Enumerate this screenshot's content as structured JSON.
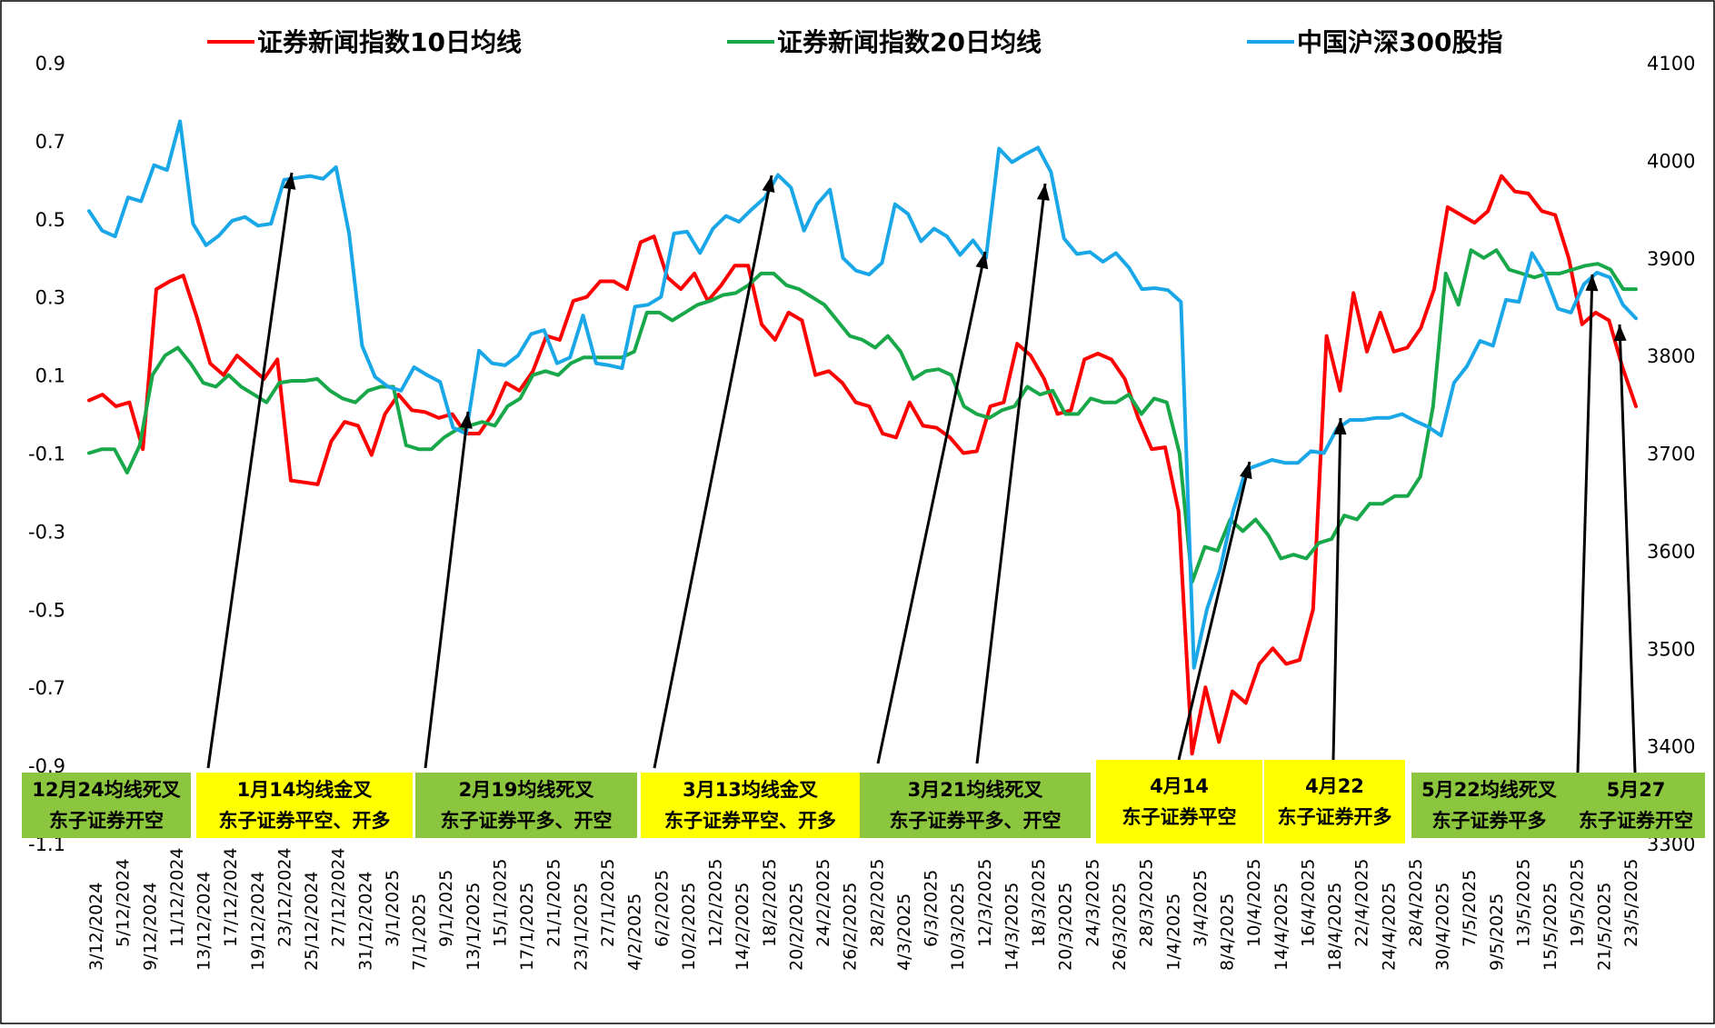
{
  "chart_data": {
    "type": "line",
    "title": "",
    "x_dates_printed": [
      "3/12/2024",
      "5/12/2024",
      "9/12/2024",
      "11/12/2024",
      "13/12/2024",
      "17/12/2024",
      "19/12/2024",
      "23/12/2024",
      "25/12/2024",
      "27/12/2024",
      "31/12/2024",
      "3/1/2025",
      "7/1/2025",
      "9/1/2025",
      "13/1/2025",
      "15/1/2025",
      "17/1/2025",
      "21/1/2025",
      "23/1/2025",
      "27/1/2025",
      "4/2/2025",
      "6/2/2025",
      "10/2/2025",
      "12/2/2025",
      "14/2/2025",
      "18/2/2025",
      "20/2/2025",
      "24/2/2025",
      "26/2/2025",
      "28/2/2025",
      "4/3/2025",
      "6/3/2025",
      "10/3/2025",
      "12/3/2025",
      "14/3/2025",
      "18/3/2025",
      "20/3/2025",
      "24/3/2025",
      "26/3/2025",
      "28/3/2025",
      "1/4/2025",
      "3/4/2025",
      "8/4/2025",
      "10/4/2025",
      "14/4/2025",
      "16/4/2025",
      "18/4/2025",
      "22/4/2025",
      "24/4/2025",
      "28/4/2025",
      "30/4/2025",
      "7/5/2025",
      "9/5/2025",
      "13/5/2025",
      "15/5/2025",
      "19/5/2025",
      "21/5/2025",
      "23/5/2025"
    ],
    "y_left": {
      "ylim": [
        -1.1,
        0.9
      ],
      "ticks": [
        "0.9",
        "0.7",
        "0.5",
        "0.3",
        "0.1",
        "-0.1",
        "-0.3",
        "-0.5",
        "-0.7",
        "-0.9",
        "-1.1"
      ]
    },
    "y_right": {
      "ylim": [
        3300,
        4100
      ],
      "ticks": [
        "4100",
        "4000",
        "3900",
        "3800",
        "3700",
        "3600",
        "3500",
        "3400",
        "3300"
      ]
    },
    "legend_position": "top",
    "series": [
      {
        "name": "证券新闻指数10日均线",
        "axis": "left",
        "color": "#FF0000",
        "values": [
          0.035,
          0.05,
          0.02,
          0.03,
          -0.09,
          0.32,
          0.34,
          0.355,
          0.25,
          0.13,
          0.1,
          0.15,
          0.12,
          0.09,
          0.14,
          -0.17,
          -0.175,
          -0.18,
          -0.07,
          -0.02,
          -0.03,
          -0.105,
          0.0,
          0.05,
          0.01,
          0.005,
          -0.01,
          0.0,
          -0.05,
          -0.05,
          0.0,
          0.08,
          0.06,
          0.11,
          0.2,
          0.19,
          0.29,
          0.3,
          0.34,
          0.34,
          0.32,
          0.44,
          0.455,
          0.35,
          0.32,
          0.36,
          0.29,
          0.33,
          0.38,
          0.38,
          0.23,
          0.19,
          0.26,
          0.24,
          0.1,
          0.11,
          0.08,
          0.03,
          0.02,
          -0.05,
          -0.06,
          0.03,
          -0.03,
          -0.035,
          -0.06,
          -0.1,
          -0.095,
          0.02,
          0.03,
          0.18,
          0.15,
          0.09,
          0.0,
          0.01,
          0.14,
          0.155,
          0.14,
          0.09,
          -0.01,
          -0.09,
          -0.085,
          -0.25,
          -0.87,
          -0.7,
          -0.84,
          -0.71,
          -0.74,
          -0.64,
          -0.6,
          -0.64,
          -0.63,
          -0.5,
          0.2,
          0.06,
          0.31,
          0.16,
          0.26,
          0.16,
          0.17,
          0.22,
          0.32,
          0.53,
          0.51,
          0.49,
          0.52,
          0.61,
          0.57,
          0.565,
          0.52,
          0.51,
          0.4,
          0.23,
          0.26,
          0.24,
          0.12,
          0.02
        ]
      },
      {
        "name": "证券新闻指数20日均线",
        "axis": "left",
        "color": "#18A84A",
        "values": [
          -0.1,
          -0.09,
          -0.09,
          -0.15,
          -0.08,
          0.1,
          0.15,
          0.17,
          0.13,
          0.08,
          0.07,
          0.1,
          0.07,
          0.05,
          0.03,
          0.08,
          0.085,
          0.085,
          0.09,
          0.06,
          0.04,
          0.03,
          0.06,
          0.07,
          0.07,
          -0.08,
          -0.09,
          -0.09,
          -0.06,
          -0.04,
          -0.03,
          -0.02,
          -0.03,
          0.02,
          0.04,
          0.1,
          0.11,
          0.1,
          0.13,
          0.145,
          0.145,
          0.145,
          0.145,
          0.16,
          0.26,
          0.26,
          0.24,
          0.26,
          0.28,
          0.29,
          0.305,
          0.31,
          0.33,
          0.36,
          0.36,
          0.33,
          0.32,
          0.3,
          0.28,
          0.24,
          0.2,
          0.19,
          0.17,
          0.2,
          0.16,
          0.09,
          0.11,
          0.115,
          0.1,
          0.02,
          0.0,
          -0.01,
          0.01,
          0.02,
          0.07,
          0.05,
          0.06,
          0.0,
          0.0,
          0.04,
          0.03,
          0.03,
          0.05,
          0.0,
          0.04,
          0.03,
          -0.1,
          -0.43,
          -0.34,
          -0.35,
          -0.27,
          -0.3,
          -0.27,
          -0.31,
          -0.37,
          -0.36,
          -0.37,
          -0.33,
          -0.32,
          -0.26,
          -0.27,
          -0.23,
          -0.23,
          -0.21,
          -0.21,
          -0.16,
          0.02,
          0.36,
          0.28,
          0.42,
          0.4,
          0.42,
          0.37,
          0.36,
          0.35,
          0.36,
          0.36,
          0.37,
          0.38,
          0.385,
          0.37,
          0.32,
          0.32
        ]
      },
      {
        "name": "中国沪深300股指",
        "axis": "right",
        "color": "#1AA7E8",
        "values": [
          3948,
          3928,
          3922,
          3962,
          3958,
          3995,
          3990,
          4040,
          3935,
          3913,
          3923,
          3938,
          3942,
          3933,
          3935,
          3980,
          3982,
          3984,
          3981,
          3993,
          3925,
          3810,
          3778,
          3768,
          3764,
          3788,
          3780,
          3773,
          3726,
          3720,
          3805,
          3792,
          3790,
          3800,
          3822,
          3826,
          3792,
          3798,
          3841,
          3792,
          3790,
          3787,
          3850,
          3852,
          3860,
          3925,
          3927,
          3905,
          3930,
          3943,
          3937,
          3950,
          3962,
          3985,
          3972,
          3928,
          3955,
          3970,
          3900,
          3887,
          3883,
          3895,
          3955,
          3945,
          3917,
          3930,
          3922,
          3903,
          3918,
          3900,
          4012,
          3998,
          4006,
          4013,
          3988,
          3920,
          3904,
          3906,
          3896,
          3905,
          3890,
          3868,
          3869,
          3867,
          3855,
          3480,
          3540,
          3580,
          3640,
          3683,
          3688,
          3693,
          3690,
          3690,
          3702,
          3700,
          3725,
          3734,
          3734,
          3736,
          3736,
          3740,
          3733,
          3727,
          3718,
          3772,
          3789,
          3815,
          3810,
          3857,
          3855,
          3905,
          3883,
          3848,
          3844,
          3873,
          3885,
          3880,
          3852,
          3838
        ]
      }
    ],
    "annotations": [
      {
        "line1": "12月24均线死叉",
        "line2": "东子证券开空",
        "bg": "#8CC63F"
      },
      {
        "line1": "1月14均线金叉",
        "line2": "东子证券平空、开多",
        "bg": "#FFFF00"
      },
      {
        "line1": "2月19均线死叉",
        "line2": "东子证券平多、开空",
        "bg": "#8CC63F"
      },
      {
        "line1": "3月13均线金叉",
        "line2": "东子证券平空、开多",
        "bg": "#FFFF00"
      },
      {
        "line1": "3月21均线死叉",
        "line2": "东子证券平多、开空",
        "bg": "#8CC63F"
      },
      {
        "line1": "4月14",
        "line2": "东子证券平空",
        "bg": "#FFFF00"
      },
      {
        "line1": "4月22",
        "line2": "东子证券开多",
        "bg": "#FFFF00"
      },
      {
        "line1": "5月22均线死叉",
        "line2": "东子证券平多",
        "bg": "#8CC63F"
      },
      {
        "line1": "5月27",
        "line2": "东子证券开空",
        "bg": "#8CC63F"
      }
    ]
  }
}
